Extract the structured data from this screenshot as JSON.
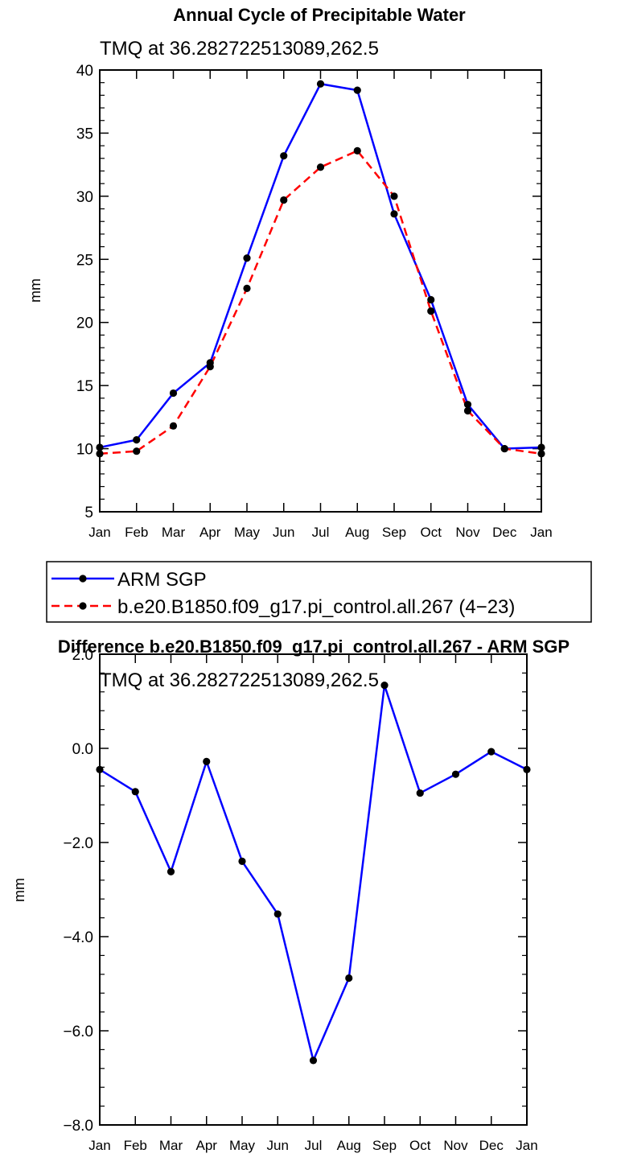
{
  "chart_data": [
    {
      "type": "line",
      "title": "Annual Cycle of Precipitable Water",
      "subtitle": "TMQ at 36.282722513089,262.5",
      "xlabel": "",
      "ylabel": "mm",
      "categories": [
        "Jan",
        "Feb",
        "Mar",
        "Apr",
        "May",
        "Jun",
        "Jul",
        "Aug",
        "Sep",
        "Oct",
        "Nov",
        "Dec",
        "Jan"
      ],
      "ylim": [
        5,
        40
      ],
      "yticks": [
        5,
        10,
        15,
        20,
        25,
        30,
        35,
        40
      ],
      "ytick_labels": [
        "5",
        "10",
        "15",
        "20",
        "25",
        "30",
        "35",
        "40"
      ],
      "series": [
        {
          "name": "ARM SGP",
          "color": "#0000ff",
          "style": "solid",
          "values": [
            10.1,
            10.7,
            14.4,
            16.8,
            25.1,
            33.2,
            38.9,
            38.4,
            28.6,
            21.8,
            13.5,
            10.0,
            10.1
          ]
        },
        {
          "name": "b.e20.B1850.f09_g17.pi_control.all.267 (4-23)",
          "color": "#ff0000",
          "style": "dashed",
          "values": [
            9.6,
            9.8,
            11.8,
            16.5,
            22.7,
            29.7,
            32.3,
            33.6,
            30.0,
            20.9,
            13.0,
            10.0,
            9.6
          ]
        }
      ],
      "legend": {
        "placement": "below",
        "items": [
          "ARM SGP",
          "b.e20.B1850.f09_g17.pi_control.all.267 (4−23)"
        ]
      }
    },
    {
      "type": "line",
      "title": "Difference b.e20.B1850.f09_g17.pi_control.all.267 - ARM SGP",
      "subtitle": "TMQ at 36.282722513089,262.5",
      "xlabel": "",
      "ylabel": "mm",
      "categories": [
        "Jan",
        "Feb",
        "Mar",
        "Apr",
        "May",
        "Jun",
        "Jul",
        "Aug",
        "Sep",
        "Oct",
        "Nov",
        "Dec",
        "Jan"
      ],
      "ylim": [
        -8,
        2
      ],
      "yticks": [
        -8,
        -6,
        -4,
        -2,
        0,
        2
      ],
      "ytick_labels": [
        "−8.0",
        "−6.0",
        "−4.0",
        "−2.0",
        "0.0",
        "2.0"
      ],
      "series": [
        {
          "color": "#0000ff",
          "style": "solid",
          "values": [
            -0.45,
            -0.92,
            -2.62,
            -0.28,
            -2.4,
            -3.52,
            -6.63,
            -4.88,
            1.34,
            -0.95,
            -0.55,
            -0.07,
            -0.45
          ]
        }
      ]
    }
  ]
}
